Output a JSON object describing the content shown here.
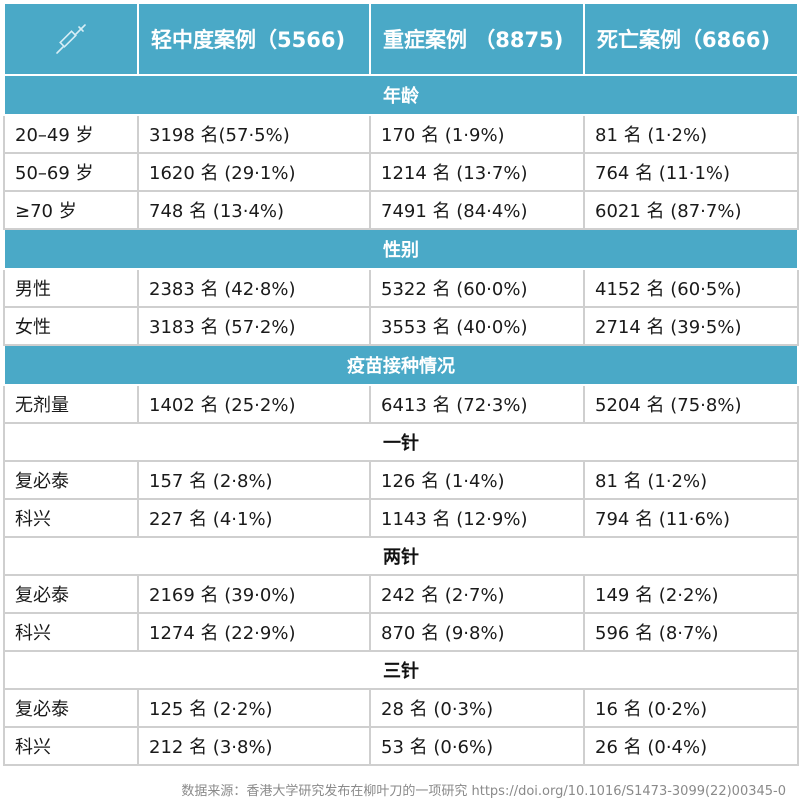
{
  "header": {
    "icon": "syringe-icon",
    "columns": [
      "轻中度案例（5566)",
      "重症案例 （8875)",
      "死亡案例（6866)"
    ]
  },
  "sections": {
    "age": {
      "title": "年龄",
      "rows": [
        {
          "label": "20–49 岁",
          "mild": "3198 名(57·5%)",
          "severe": "170 名 (1·9%)",
          "death": "81 名 (1·2%)"
        },
        {
          "label": "50–69 岁",
          "mild": "1620 名 (29·1%)",
          "severe": "1214 名 (13·7%)",
          "death": "764 名 (11·1%)"
        },
        {
          "label": "≥70 岁",
          "mild": "748 名 (13·4%)",
          "severe": "7491 名 (84·4%)",
          "death": "6021 名 (87·7%)"
        }
      ]
    },
    "sex": {
      "title": "性别",
      "rows": [
        {
          "label": "男性",
          "mild": "2383 名 (42·8%)",
          "severe": "5322 名 (60·0%)",
          "death": "4152 名 (60·5%)"
        },
        {
          "label": "女性",
          "mild": "3183 名 (57·2%)",
          "severe": "3553 名 (40·0%)",
          "death": "2714 名 (39·5%)"
        }
      ]
    },
    "vaccine": {
      "title": "疫苗接种情况",
      "none_row": {
        "label": "无剂量",
        "mild": "1402 名 (25·2%)",
        "severe": "6413 名 (72·3%)",
        "death": "5204 名 (75·8%)"
      },
      "dose1": {
        "title": "一针",
        "rows": [
          {
            "label": "复必泰",
            "mild": "157 名 (2·8%)",
            "severe": "126 名 (1·4%)",
            "death": "81 名 (1·2%)"
          },
          {
            "label": "科兴",
            "mild": "227 名 (4·1%)",
            "severe": "1143 名 (12·9%)",
            "death": "794 名 (11·6%)"
          }
        ]
      },
      "dose2": {
        "title": "两针",
        "rows": [
          {
            "label": "复必泰",
            "mild": "2169 名 (39·0%)",
            "severe": "242 名 (2·7%)",
            "death": "149 名 (2·2%)"
          },
          {
            "label": "科兴",
            "mild": "1274 名 (22·9%)",
            "severe": "870 名 (9·8%)",
            "death": "596 名 (8·7%)"
          }
        ]
      },
      "dose3": {
        "title": "三针",
        "rows": [
          {
            "label": "复必泰",
            "mild": "125 名 (2·2%)",
            "severe": "28 名 (0·3%)",
            "death": "16 名 (0·2%)"
          },
          {
            "label": "科兴",
            "mild": "212 名 (3·8%)",
            "severe": "53 名 (0·6%)",
            "death": "26 名 (0·4%)"
          }
        ]
      }
    }
  },
  "footer": "数据来源：香港大学研究发布在柳叶刀的一项研究 https://doi.org/10.1016/S1473-3099(22)00345-0",
  "colors": {
    "header_bg": "#4aa9c7",
    "border": "#cfcfcf",
    "footer_text": "#8a8a8a"
  }
}
